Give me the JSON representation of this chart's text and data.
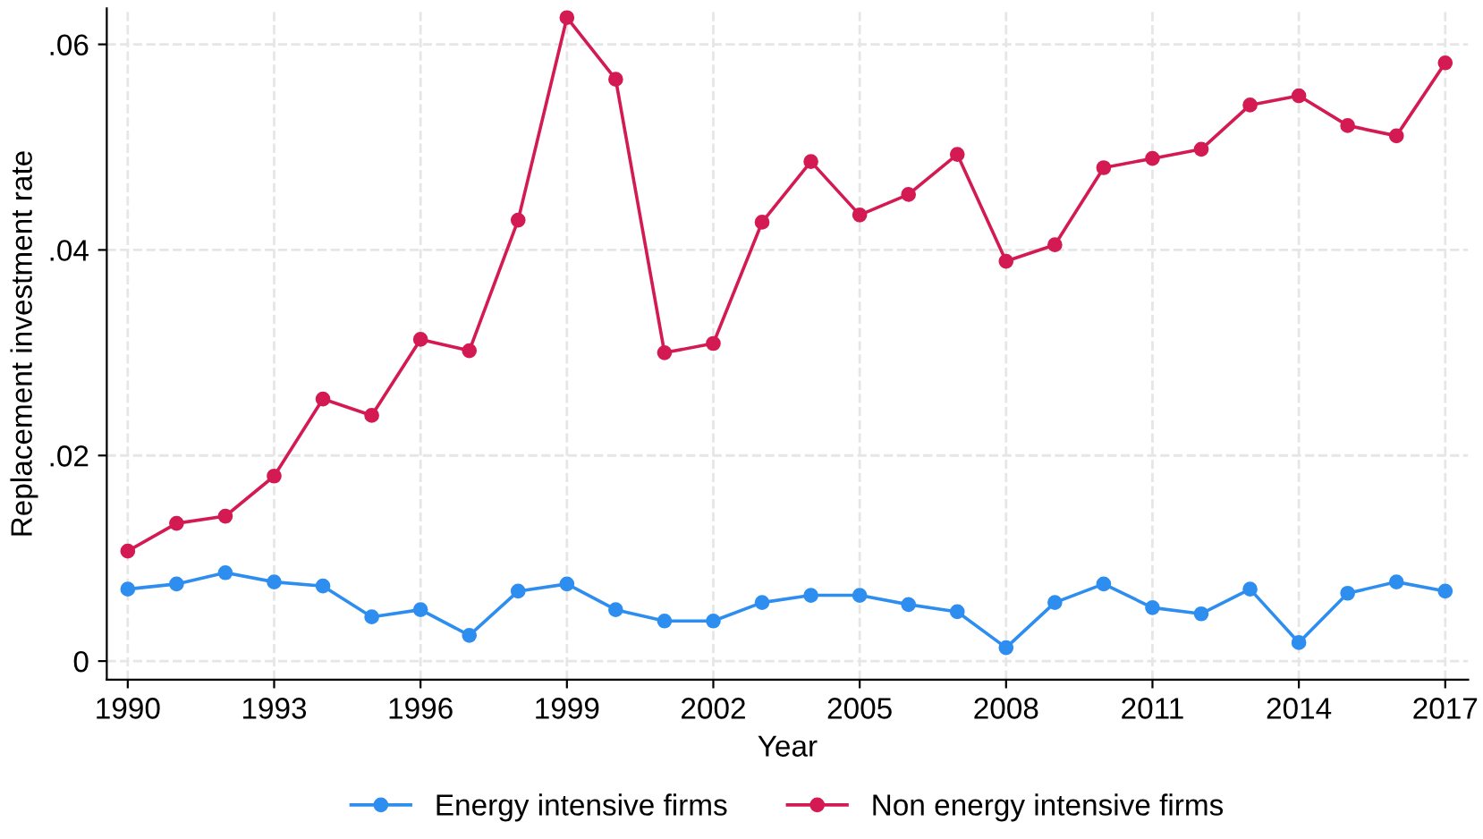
{
  "chart_data": {
    "type": "line",
    "xlabel": "Year",
    "ylabel": "Replacement investment rate",
    "x": [
      1990,
      1991,
      1992,
      1993,
      1994,
      1995,
      1996,
      1997,
      1998,
      1999,
      2000,
      2001,
      2002,
      2003,
      2004,
      2005,
      2006,
      2007,
      2008,
      2009,
      2010,
      2011,
      2012,
      2013,
      2014,
      2015,
      2016,
      2017
    ],
    "series": [
      {
        "name": "Energy intensive firms",
        "color": "#2e8ef0",
        "values": [
          0.007,
          0.0075,
          0.0086,
          0.0077,
          0.0073,
          0.0043,
          0.005,
          0.0025,
          0.0068,
          0.0075,
          0.005,
          0.0039,
          0.0039,
          0.0057,
          0.0064,
          0.0064,
          0.0055,
          0.0048,
          0.0013,
          0.0057,
          0.0075,
          0.0052,
          0.0046,
          0.007,
          0.0018,
          0.0066,
          0.0077,
          0.0068
        ]
      },
      {
        "name": "Non energy intensive firms",
        "color": "#d41a52",
        "values": [
          0.0107,
          0.0134,
          0.0141,
          0.018,
          0.0255,
          0.0239,
          0.0313,
          0.0302,
          0.0429,
          0.0626,
          0.0566,
          0.03,
          0.0309,
          0.0427,
          0.0486,
          0.0434,
          0.0454,
          0.0493,
          0.0389,
          0.0405,
          0.048,
          0.0489,
          0.0498,
          0.0541,
          0.055,
          0.0521,
          0.0511,
          0.0582
        ]
      }
    ],
    "xlim": [
      1989.57,
      2017.47
    ],
    "ylim": [
      -0.0018,
      0.0635
    ],
    "xticks": [
      1990,
      1993,
      1996,
      1999,
      2002,
      2005,
      2008,
      2011,
      2014,
      2017
    ],
    "yticks": [
      {
        "value": 0,
        "label": "0"
      },
      {
        "value": 0.02,
        "label": ".02"
      },
      {
        "value": 0.04,
        "label": ".04"
      },
      {
        "value": 0.06,
        "label": ".06"
      }
    ],
    "grid": true,
    "legend": "bottom",
    "marker": "circle",
    "line_style": "solid"
  }
}
